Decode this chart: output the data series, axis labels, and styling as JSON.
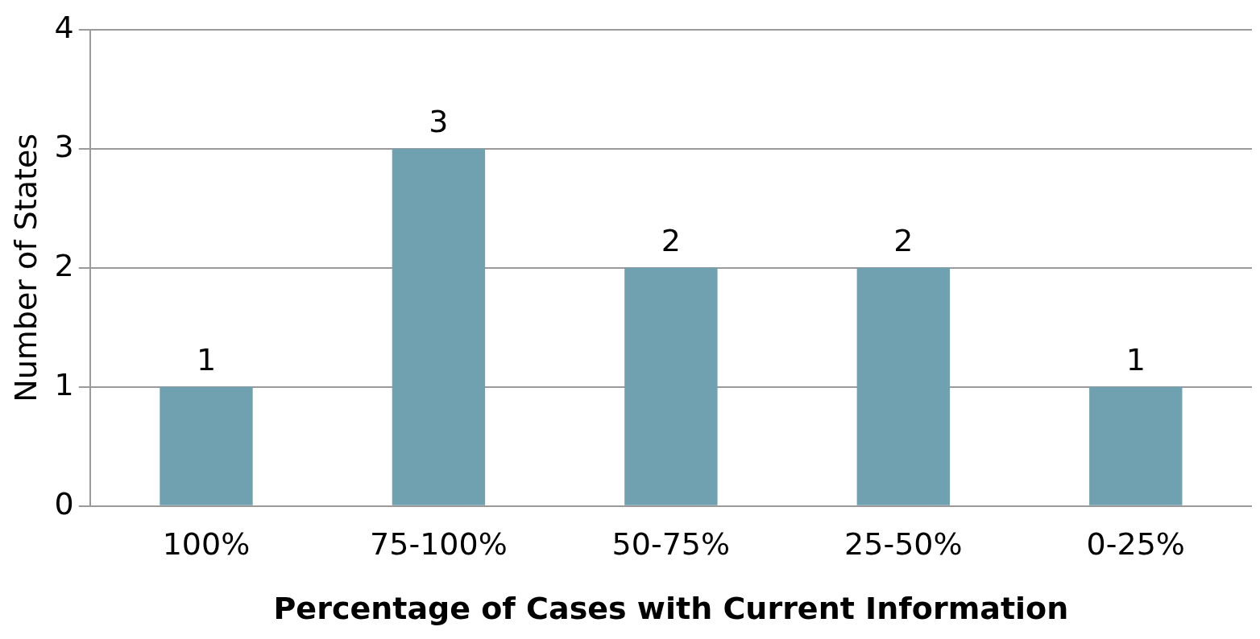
{
  "chart_data": {
    "type": "bar",
    "xlabel": "Percentage of Cases with Current Information",
    "ylabel": "Number of States",
    "categories": [
      "100%",
      "75-100%",
      "50-75%",
      "25-50%",
      "0-25%"
    ],
    "values": [
      1,
      3,
      2,
      2,
      1
    ],
    "color": "#6fa1b0",
    "ylim": [
      0,
      4
    ],
    "yticks": [
      0,
      1,
      2,
      3,
      4
    ],
    "grid": "y",
    "data_labels": true,
    "legend": false
  }
}
